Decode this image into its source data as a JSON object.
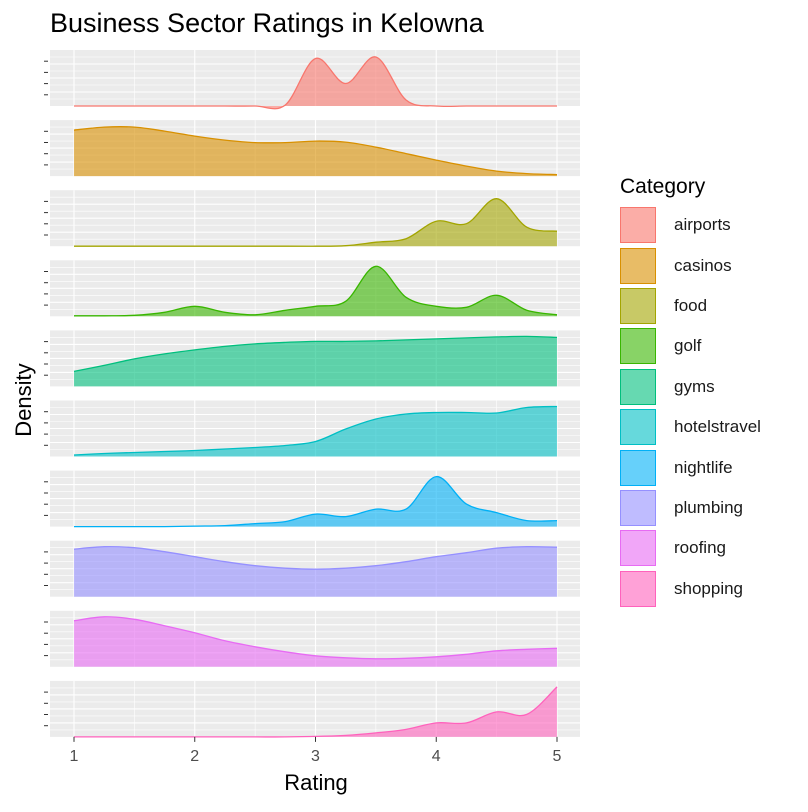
{
  "chart_data": {
    "type": "area",
    "title": "Business Sector Ratings in Kelowna",
    "xlabel": "Rating",
    "ylabel": "Density",
    "xlim": [
      1,
      5
    ],
    "x_ticks": [
      "1",
      "2",
      "3",
      "4",
      "5"
    ],
    "grid": true,
    "legend_title": "Category",
    "legend_position": "right",
    "x": [
      1.0,
      1.25,
      1.5,
      1.75,
      2.0,
      2.25,
      2.5,
      2.75,
      3.0,
      3.25,
      3.5,
      3.75,
      4.0,
      4.25,
      4.5,
      4.75,
      5.0
    ],
    "series": [
      {
        "name": "airports",
        "color": "#F8766D",
        "values": [
          0,
          0,
          0,
          0,
          0,
          0,
          0,
          0.02,
          0.95,
          0.45,
          0.98,
          0.12,
          0,
          0,
          0,
          0,
          0
        ]
      },
      {
        "name": "casinos",
        "color": "#D89000",
        "values": [
          0.92,
          0.98,
          0.98,
          0.9,
          0.8,
          0.72,
          0.67,
          0.67,
          0.7,
          0.68,
          0.58,
          0.45,
          0.32,
          0.2,
          0.1,
          0.05,
          0.03
        ]
      },
      {
        "name": "food",
        "color": "#A3A500",
        "values": [
          0,
          0,
          0,
          0,
          0,
          0,
          0,
          0,
          0,
          0.01,
          0.08,
          0.15,
          0.5,
          0.45,
          0.95,
          0.38,
          0.3
        ]
      },
      {
        "name": "golf",
        "color": "#39B600",
        "values": [
          0.01,
          0.01,
          0.02,
          0.08,
          0.2,
          0.08,
          0.03,
          0.12,
          0.2,
          0.3,
          1.0,
          0.38,
          0.2,
          0.18,
          0.42,
          0.12,
          0.03
        ]
      },
      {
        "name": "gyms",
        "color": "#00BF7D",
        "values": [
          0.3,
          0.42,
          0.55,
          0.65,
          0.73,
          0.8,
          0.85,
          0.88,
          0.9,
          0.9,
          0.91,
          0.93,
          0.95,
          0.97,
          0.99,
          1.0,
          0.98
        ]
      },
      {
        "name": "hotelstravel",
        "color": "#00BFC4",
        "values": [
          0.03,
          0.06,
          0.08,
          0.1,
          0.12,
          0.15,
          0.18,
          0.22,
          0.3,
          0.55,
          0.75,
          0.85,
          0.88,
          0.88,
          0.87,
          0.98,
          1.0
        ]
      },
      {
        "name": "nightlife",
        "color": "#00B0F6",
        "values": [
          0,
          0,
          0,
          0,
          0.01,
          0.02,
          0.06,
          0.1,
          0.25,
          0.2,
          0.35,
          0.35,
          1.0,
          0.45,
          0.28,
          0.12,
          0.12
        ]
      },
      {
        "name": "plumbing",
        "color": "#9590FF",
        "values": [
          0.95,
          1.0,
          0.98,
          0.9,
          0.8,
          0.7,
          0.62,
          0.57,
          0.55,
          0.57,
          0.62,
          0.7,
          0.8,
          0.88,
          0.97,
          1.0,
          0.99
        ]
      },
      {
        "name": "roofing",
        "color": "#E76BF3",
        "values": [
          0.92,
          1.0,
          0.95,
          0.82,
          0.68,
          0.52,
          0.4,
          0.3,
          0.22,
          0.18,
          0.16,
          0.17,
          0.2,
          0.25,
          0.32,
          0.35,
          0.37
        ]
      },
      {
        "name": "shopping",
        "color": "#FF62BC",
        "values": [
          0,
          0,
          0,
          0,
          0,
          0,
          0,
          0,
          0.01,
          0.03,
          0.08,
          0.15,
          0.28,
          0.28,
          0.5,
          0.45,
          1.0
        ]
      }
    ]
  }
}
